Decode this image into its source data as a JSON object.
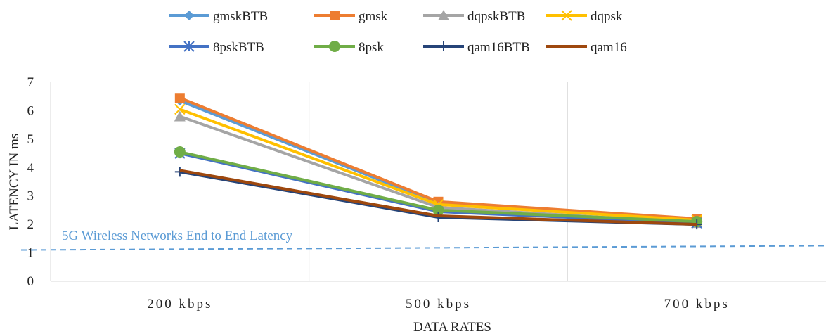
{
  "chart_data": {
    "type": "line",
    "categories": [
      "200 kbps",
      "500 kbps",
      "700 kbps"
    ],
    "xlabel": "DATA RATES",
    "ylabel": "LATENCY IN  ms",
    "ylim": [
      0,
      7
    ],
    "yticks": [
      0,
      1,
      2,
      3,
      4,
      5,
      6,
      7
    ],
    "grid": "vertical",
    "legend_position": "top",
    "series": [
      {
        "name": "gmskBTB",
        "values": [
          6.35,
          2.75,
          2.15
        ],
        "color": "#5B9BD5",
        "marker": "diamond"
      },
      {
        "name": "gmsk",
        "values": [
          6.45,
          2.8,
          2.2
        ],
        "color": "#ED7D31",
        "marker": "square"
      },
      {
        "name": "dqpskBTB",
        "values": [
          5.8,
          2.6,
          2.05
        ],
        "color": "#A5A5A5",
        "marker": "triangle"
      },
      {
        "name": "dqpsk",
        "values": [
          6.05,
          2.7,
          2.15
        ],
        "color": "#FFC000",
        "marker": "x"
      },
      {
        "name": "8pskBTB",
        "values": [
          4.5,
          2.45,
          2.05
        ],
        "color": "#4472C4",
        "marker": "asterisk"
      },
      {
        "name": "8psk",
        "values": [
          4.55,
          2.5,
          2.1
        ],
        "color": "#70AD47",
        "marker": "circle"
      },
      {
        "name": "qam16BTB",
        "values": [
          3.85,
          2.25,
          2.0
        ],
        "color": "#264478",
        "marker": "plus"
      },
      {
        "name": "qam16",
        "values": [
          3.9,
          2.3,
          2.0
        ],
        "color": "#9E480E",
        "marker": "none"
      }
    ],
    "annotation": {
      "text": "5G Wireless Networks End to End Latency",
      "color": "#5B9BD5",
      "line_start": 1.1,
      "line_end": 1.25
    }
  }
}
